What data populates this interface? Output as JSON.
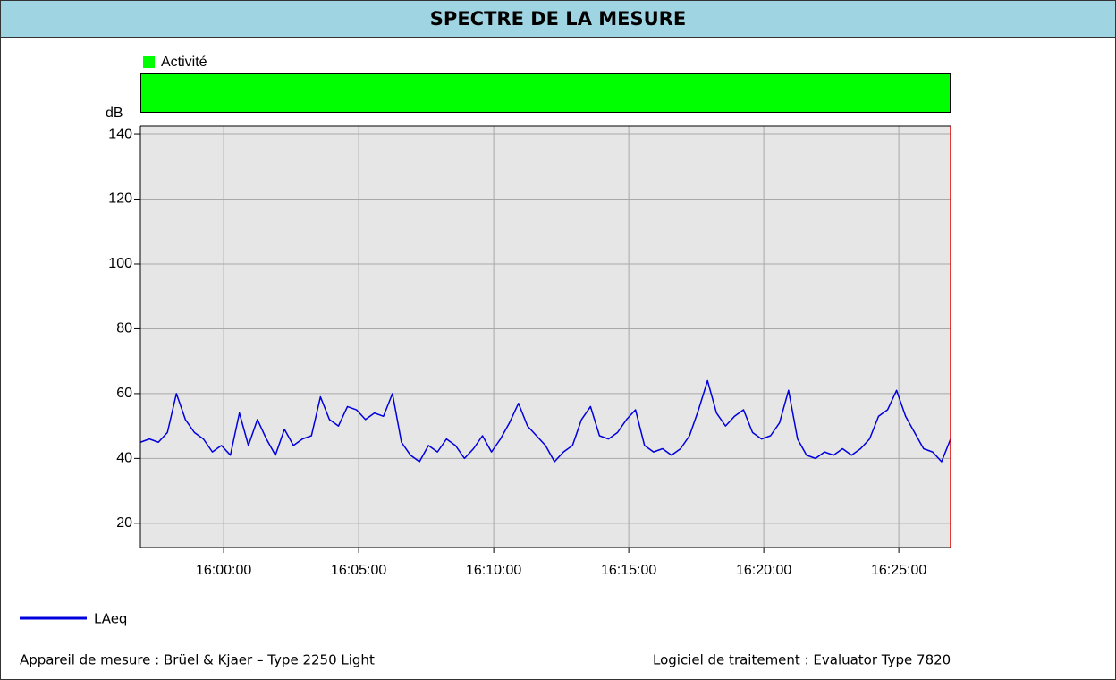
{
  "header": {
    "title": "SPECTRE DE LA MESURE"
  },
  "chart_data": {
    "type": "line",
    "activity": {
      "name": "Activité",
      "color": "#00ff00"
    },
    "y_label": "dB",
    "x": [
      "15:56:55",
      "15:57:15",
      "15:57:35",
      "15:57:55",
      "15:58:15",
      "15:58:35",
      "15:58:55",
      "15:59:15",
      "15:59:35",
      "15:59:55",
      "16:00:15",
      "16:00:35",
      "16:00:55",
      "16:01:15",
      "16:01:35",
      "16:01:55",
      "16:02:15",
      "16:02:35",
      "16:02:55",
      "16:03:15",
      "16:03:35",
      "16:03:55",
      "16:04:15",
      "16:04:35",
      "16:04:55",
      "16:05:15",
      "16:05:35",
      "16:05:55",
      "16:06:15",
      "16:06:35",
      "16:06:55",
      "16:07:15",
      "16:07:35",
      "16:07:55",
      "16:08:15",
      "16:08:35",
      "16:08:55",
      "16:09:15",
      "16:09:35",
      "16:09:55",
      "16:10:15",
      "16:10:35",
      "16:10:55",
      "16:11:15",
      "16:11:35",
      "16:11:55",
      "16:12:15",
      "16:12:35",
      "16:12:55",
      "16:13:15",
      "16:13:35",
      "16:13:55",
      "16:14:15",
      "16:14:35",
      "16:14:55",
      "16:15:15",
      "16:15:35",
      "16:15:55",
      "16:16:15",
      "16:16:35",
      "16:16:55",
      "16:17:15",
      "16:17:35",
      "16:17:55",
      "16:18:15",
      "16:18:35",
      "16:18:55",
      "16:19:15",
      "16:19:35",
      "16:19:55",
      "16:20:15",
      "16:20:35",
      "16:20:55",
      "16:21:15",
      "16:21:35",
      "16:21:55",
      "16:22:15",
      "16:22:35",
      "16:22:55",
      "16:23:15",
      "16:23:35",
      "16:23:55",
      "16:24:15",
      "16:24:35",
      "16:24:55",
      "16:25:15",
      "16:25:35",
      "16:25:55",
      "16:26:15",
      "16:26:35",
      "16:26:55"
    ],
    "series": [
      {
        "name": "LAeq",
        "color": "#0000dd",
        "values": [
          45,
          46,
          45,
          48,
          60,
          52,
          48,
          46,
          42,
          44,
          41,
          54,
          44,
          52,
          46,
          41,
          49,
          44,
          46,
          47,
          59,
          52,
          50,
          56,
          55,
          52,
          54,
          53,
          60,
          45,
          41,
          39,
          44,
          42,
          46,
          44,
          40,
          43,
          47,
          42,
          46,
          51,
          57,
          50,
          47,
          44,
          39,
          42,
          44,
          52,
          56,
          47,
          46,
          48,
          52,
          55,
          44,
          42,
          43,
          41,
          43,
          47,
          55,
          64,
          54,
          50,
          53,
          55,
          48,
          46,
          47,
          51,
          61,
          46,
          41,
          40,
          42,
          41,
          43,
          41,
          43,
          46,
          53,
          55,
          61,
          53,
          48,
          43,
          42,
          39,
          46
        ]
      }
    ],
    "xlim": [
      "15:56:55",
      "16:26:55"
    ],
    "xticks": [
      "16:00:00",
      "16:05:00",
      "16:10:00",
      "16:15:00",
      "16:20:00",
      "16:25:00"
    ],
    "ylim": [
      12.5,
      142.5
    ],
    "yticks": [
      20,
      40,
      60,
      80,
      100,
      120,
      140
    ],
    "grid": true
  },
  "footer": {
    "left": "Appareil de mesure : Brüel & Kjaer – Type 2250 Light",
    "right": "Logiciel de traitement : Evaluator Type 7820"
  }
}
